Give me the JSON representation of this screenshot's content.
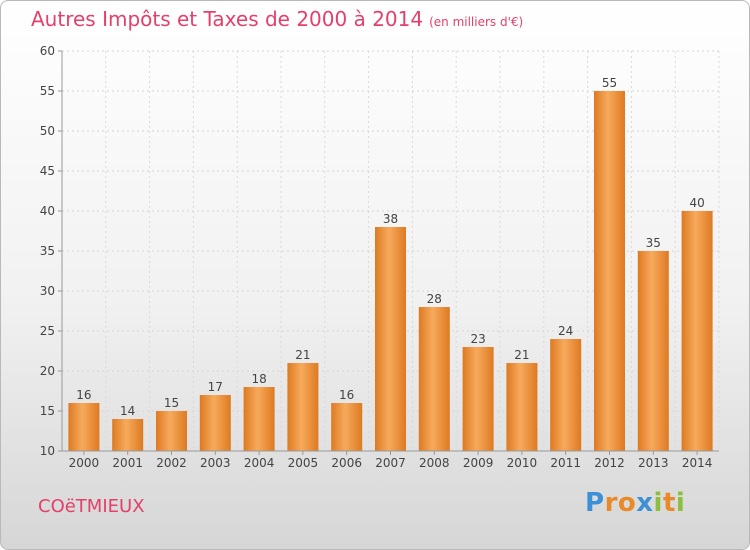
{
  "title": "Autres Impôts et Taxes de 2000 à 2014",
  "unit": "(en milliers d'€)",
  "commune": "COëTMIEUX",
  "logo": {
    "text": "Proxiti",
    "letters": [
      "P",
      "r",
      "o",
      "x",
      "i",
      "t",
      "i"
    ],
    "colors": [
      "#3d8fd6",
      "#e8892a",
      "#e8892a",
      "#3d8fd6",
      "#8cbf3f",
      "#e8892a",
      "#8cbf3f"
    ]
  },
  "colors": {
    "accent": "#e4406a",
    "bar_light": "#f7aa5c",
    "bar_dark": "#dd7a22"
  },
  "chart_data": {
    "type": "bar",
    "categories": [
      "2000",
      "2001",
      "2002",
      "2003",
      "2004",
      "2005",
      "2006",
      "2007",
      "2008",
      "2009",
      "2010",
      "2011",
      "2012",
      "2013",
      "2014"
    ],
    "values": [
      16,
      14,
      15,
      17,
      18,
      21,
      16,
      38,
      28,
      23,
      21,
      24,
      55,
      35,
      40
    ],
    "ylim": [
      10,
      60
    ],
    "yticks": [
      10,
      15,
      20,
      25,
      30,
      35,
      40,
      45,
      50,
      55,
      60
    ],
    "grid": true
  }
}
